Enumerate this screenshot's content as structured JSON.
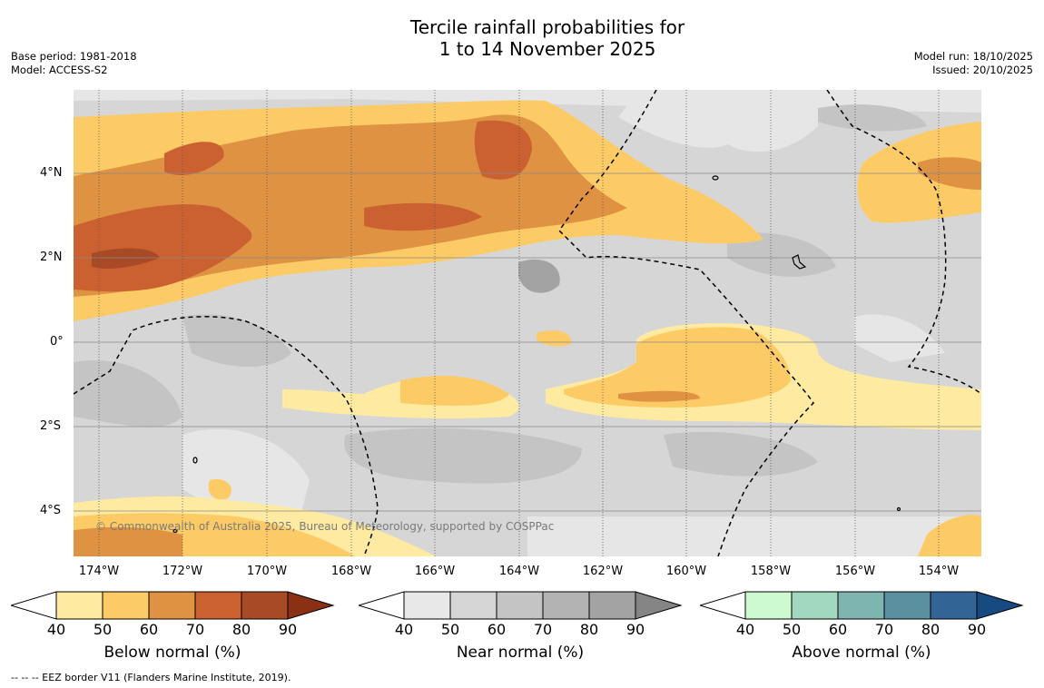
{
  "title": {
    "line1": "Tercile rainfall probabilities for",
    "line2": "1 to 14 November 2025"
  },
  "meta_left": {
    "base_period": "Base period: 1981-2018",
    "model": "Model: ACCESS-S2"
  },
  "meta_right": {
    "model_run": "Model run: 18/10/2025",
    "issued": "Issued: 20/10/2025"
  },
  "lat_labels": [
    "4°N",
    "2°N",
    "0°",
    "2°S",
    "4°S"
  ],
  "lon_labels": [
    "174°W",
    "172°W",
    "170°W",
    "168°W",
    "166°W",
    "164°W",
    "162°W",
    "160°W",
    "158°W",
    "156°W",
    "154°W"
  ],
  "credit": "© Commonwealth of Australia 2025, Bureau of Meteorology, supported by COSPPac",
  "colorbars": [
    {
      "label": "Below normal (%)",
      "colors": [
        "#ffffff",
        "#feeaa0",
        "#fdcb65",
        "#e09243",
        "#cb6030",
        "#a84a25",
        "#8a3013"
      ]
    },
    {
      "label": "Near normal (%)",
      "colors": [
        "#ffffff",
        "#e8e8e8",
        "#d5d5d5",
        "#c4c4c4",
        "#b3b3b3",
        "#a3a3a3",
        "#858585"
      ]
    },
    {
      "label": "Above normal (%)",
      "colors": [
        "#ffffff",
        "#ccf9d0",
        "#a3d8c0",
        "#7fb5b0",
        "#5b90a0",
        "#336496",
        "#164a80"
      ]
    }
  ],
  "colorbar_ticks": [
    "40",
    "50",
    "60",
    "70",
    "80",
    "90"
  ],
  "footnote": "--  --  -- EEZ border V11 (Flanders Marine Institute, 2019)."
}
